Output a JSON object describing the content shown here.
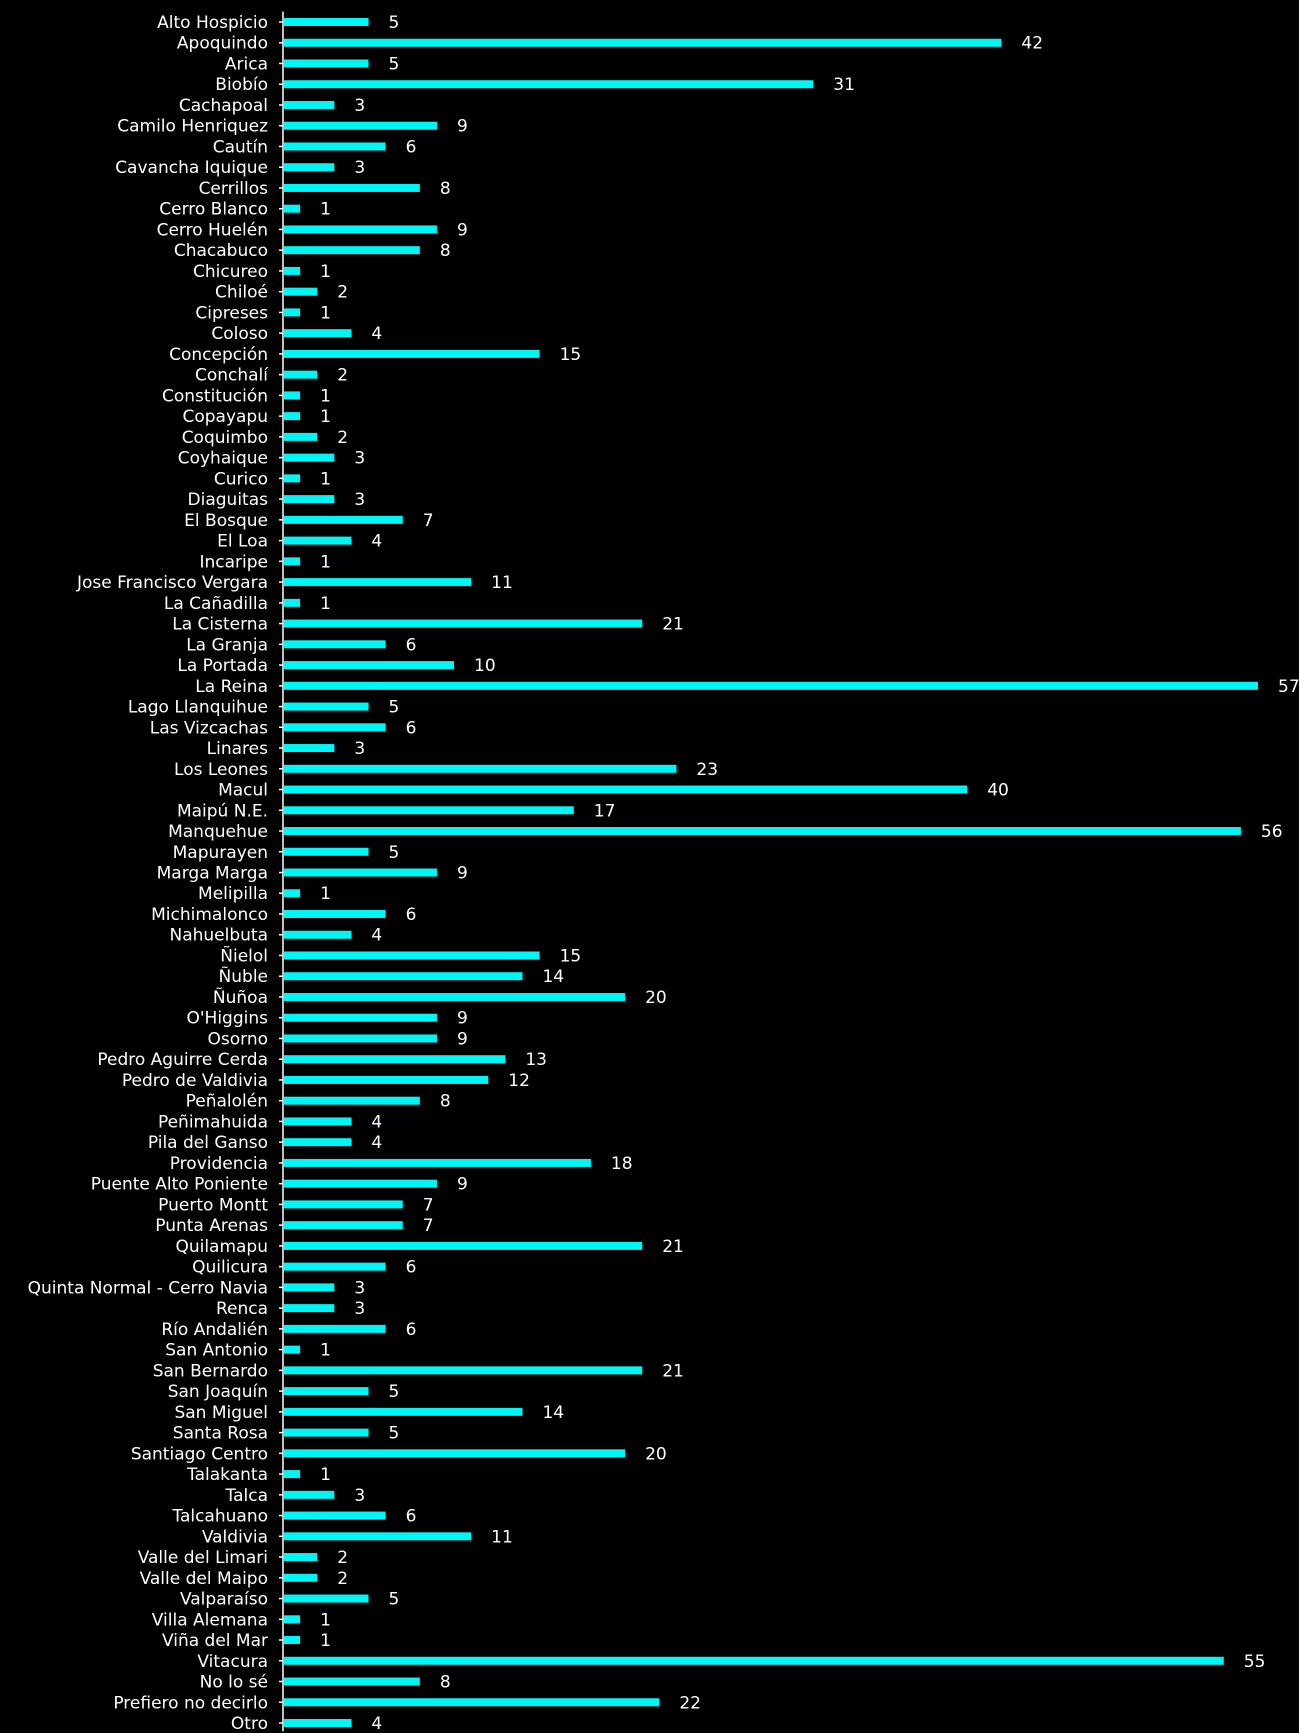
{
  "colors": {
    "background": "#000000",
    "bar": "#00f5f5",
    "axis": "#ffffff",
    "text": "#ffffff"
  },
  "chart_data": {
    "type": "bar",
    "orientation": "horizontal",
    "title": "",
    "xlabel": "",
    "ylabel": "",
    "xlim": [
      0,
      57
    ],
    "grid": false,
    "legend": "none",
    "categories": [
      "Alto Hospicio",
      "Apoquindo",
      "Arica",
      "Biobío",
      "Cachapoal",
      "Camilo Henriquez",
      "Cautín",
      "Cavancha Iquique",
      "Cerrillos",
      "Cerro Blanco",
      "Cerro Huelén",
      "Chacabuco",
      "Chicureo",
      "Chiloé",
      "Cipreses",
      "Coloso",
      "Concepción",
      "Conchalí",
      "Constitución",
      "Copayapu",
      "Coquimbo",
      "Coyhaique",
      "Curico",
      "Diaguitas",
      "El Bosque",
      "El Loa",
      "Incaripe",
      "Jose Francisco Vergara",
      "La Cañadilla",
      "La Cisterna",
      "La Granja",
      "La Portada",
      "La Reina",
      "Lago Llanquihue",
      "Las Vizcachas",
      "Linares",
      "Los Leones",
      "Macul",
      "Maipú N.E.",
      "Manquehue",
      "Mapurayen",
      "Marga Marga",
      "Melipilla",
      "Michimalonco",
      "Nahuelbuta",
      "Ñielol",
      "Ñuble",
      "Ñuñoa",
      "O'Higgins",
      "Osorno",
      "Pedro Aguirre Cerda",
      "Pedro de Valdivia",
      "Peñalolén",
      "Peñimahuida",
      "Pila del Ganso",
      "Providencia",
      "Puente Alto Poniente",
      "Puerto Montt",
      "Punta Arenas",
      "Quilamapu",
      "Quilicura",
      "Quinta Normal - Cerro Navia",
      "Renca",
      "Río Andalién",
      "San Antonio",
      "San Bernardo",
      "San Joaquín",
      "San Miguel",
      "Santa Rosa",
      "Santiago Centro",
      "Talakanta",
      "Talca",
      "Talcahuano",
      "Valdivia",
      "Valle del Limari",
      "Valle del Maipo",
      "Valparaíso",
      "Villa Alemana",
      "Viña del Mar",
      "Vitacura",
      "No lo sé",
      "Prefiero no decirlo",
      "Otro"
    ],
    "values": [
      5,
      42,
      5,
      31,
      3,
      9,
      6,
      3,
      8,
      1,
      9,
      8,
      1,
      2,
      1,
      4,
      15,
      2,
      1,
      1,
      2,
      3,
      1,
      3,
      7,
      4,
      1,
      11,
      1,
      21,
      6,
      10,
      57,
      5,
      6,
      3,
      23,
      40,
      17,
      56,
      5,
      9,
      1,
      6,
      4,
      15,
      14,
      20,
      9,
      9,
      13,
      12,
      8,
      4,
      4,
      18,
      9,
      7,
      7,
      21,
      6,
      3,
      3,
      6,
      1,
      21,
      5,
      14,
      5,
      20,
      1,
      3,
      6,
      11,
      2,
      2,
      5,
      1,
      1,
      55,
      8,
      22,
      4
    ]
  }
}
